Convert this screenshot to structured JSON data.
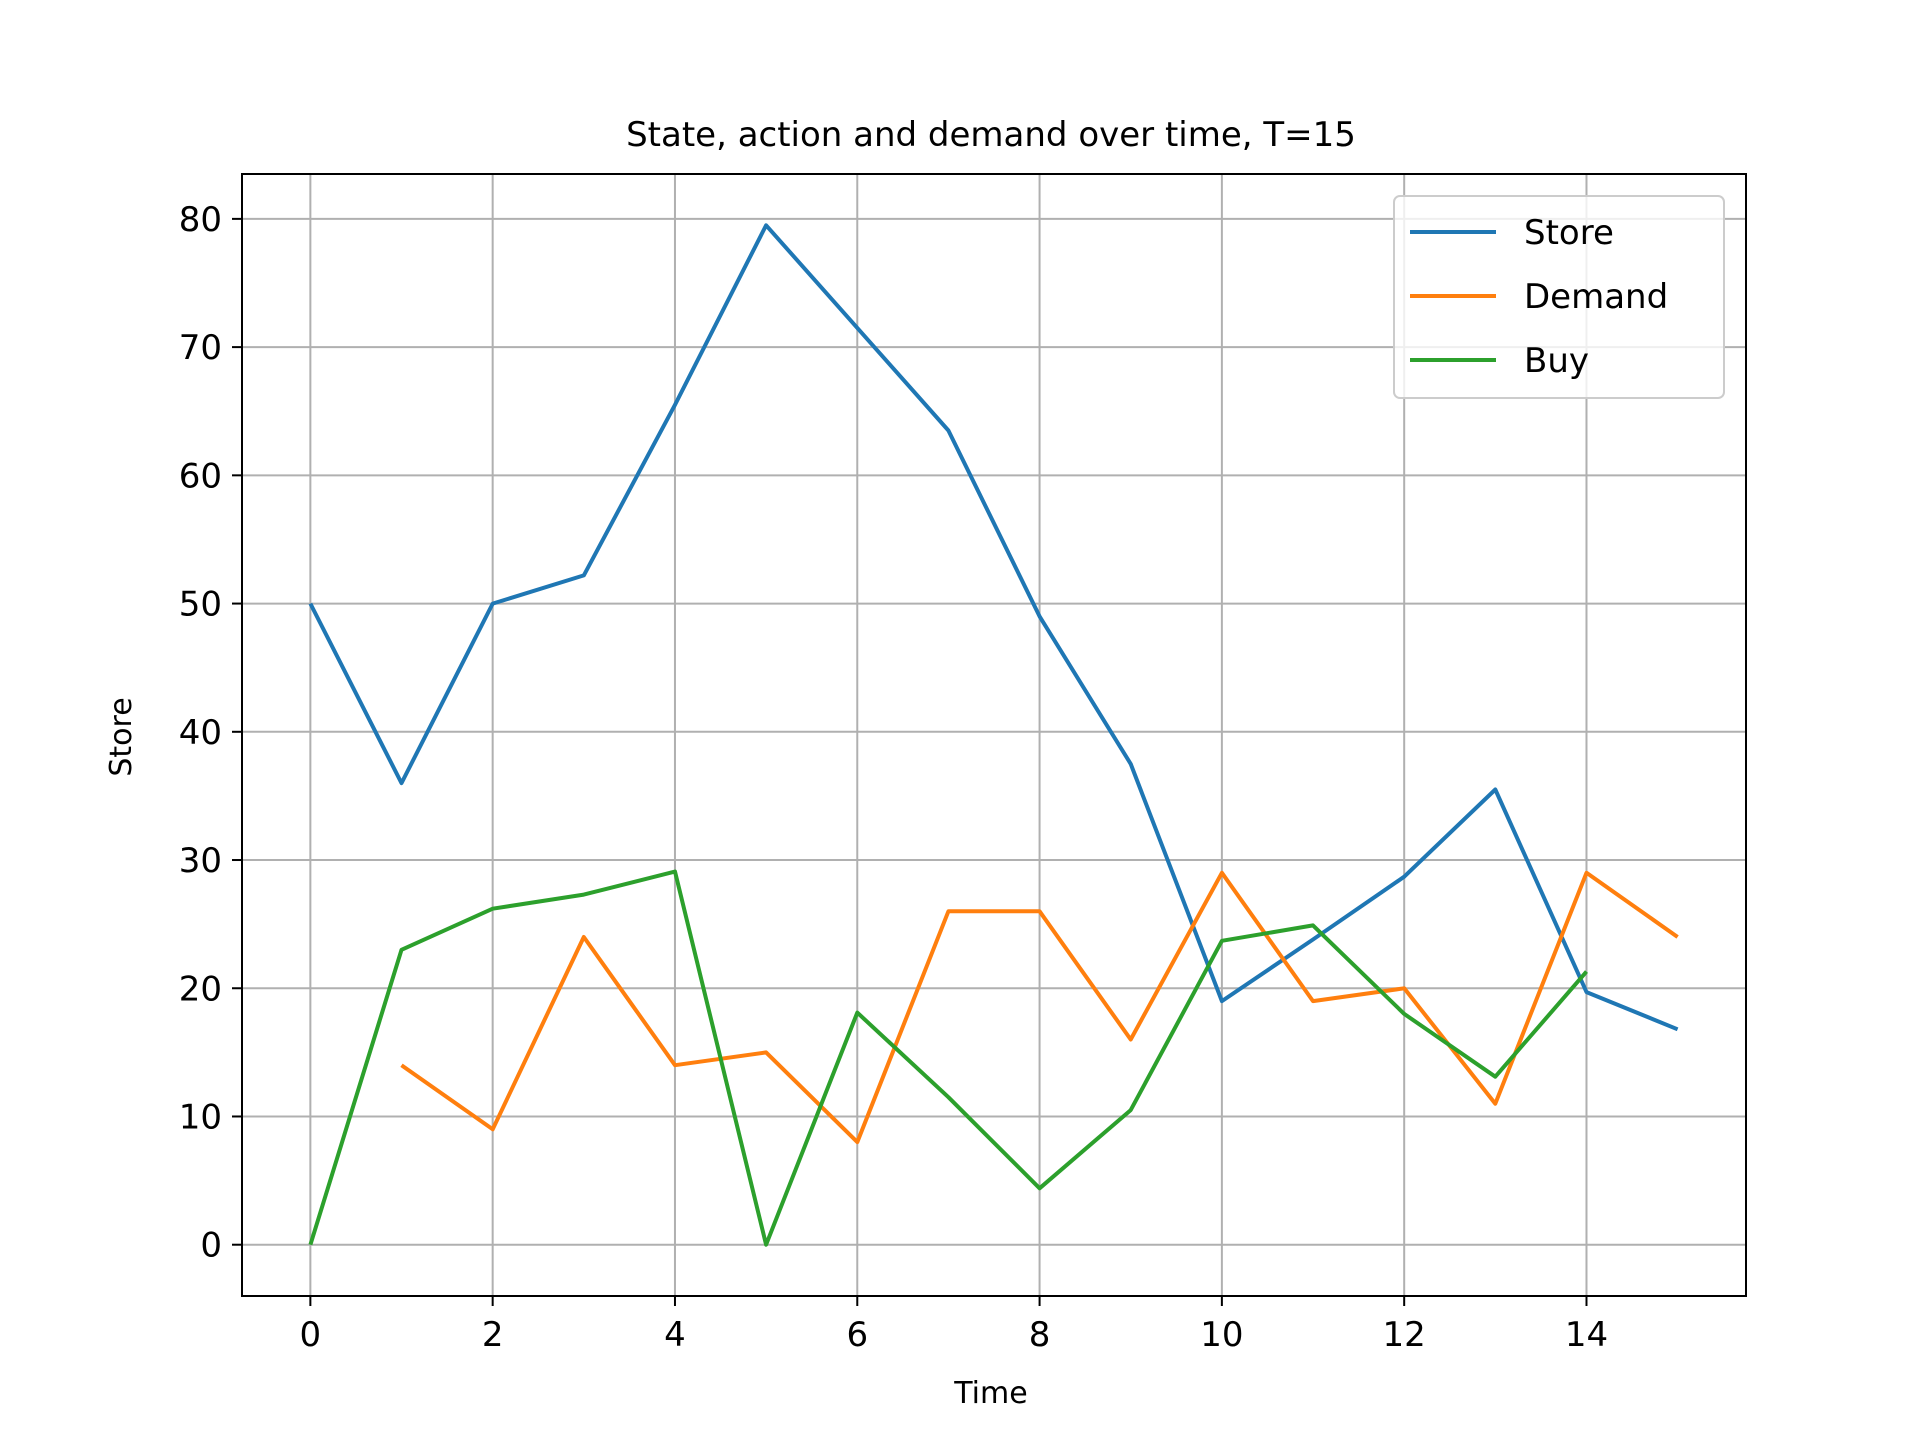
{
  "chart_data": {
    "type": "line",
    "title": "State, action and demand over time, T=15",
    "xlabel": "Time",
    "ylabel": "Store",
    "xlim": [
      -0.75,
      15.75
    ],
    "ylim": [
      -4,
      83.5
    ],
    "xticks": [
      0,
      2,
      4,
      6,
      8,
      10,
      12,
      14
    ],
    "yticks": [
      0,
      10,
      20,
      30,
      40,
      50,
      60,
      70,
      80
    ],
    "grid": true,
    "legend_position": "top-right",
    "series": [
      {
        "name": "Store",
        "color": "#1f77b4",
        "x": [
          0,
          1,
          2,
          3,
          4,
          5,
          6,
          7,
          8,
          9,
          10,
          11,
          12,
          13,
          14,
          15
        ],
        "y": [
          50,
          36,
          50,
          52.2,
          65.5,
          79.5,
          71.5,
          63.5,
          49,
          37.5,
          19,
          23.8,
          28.7,
          35.5,
          19.7,
          16.8
        ]
      },
      {
        "name": "Demand",
        "color": "#ff7f0e",
        "x": [
          1,
          2,
          3,
          4,
          5,
          6,
          7,
          8,
          9,
          10,
          11,
          12,
          13,
          14,
          15
        ],
        "y": [
          14,
          9,
          24,
          14,
          15,
          8,
          26,
          26,
          16,
          29,
          19,
          20,
          11,
          29,
          24
        ]
      },
      {
        "name": "Buy",
        "color": "#2ca02c",
        "x": [
          0,
          1,
          2,
          3,
          4,
          5,
          6,
          7,
          8,
          9,
          10,
          11,
          12,
          13,
          14
        ],
        "y": [
          0,
          23,
          26.2,
          27.3,
          29.1,
          0,
          18.1,
          11.5,
          4.4,
          10.5,
          23.7,
          24.9,
          18,
          13.1,
          21.3
        ]
      }
    ]
  }
}
